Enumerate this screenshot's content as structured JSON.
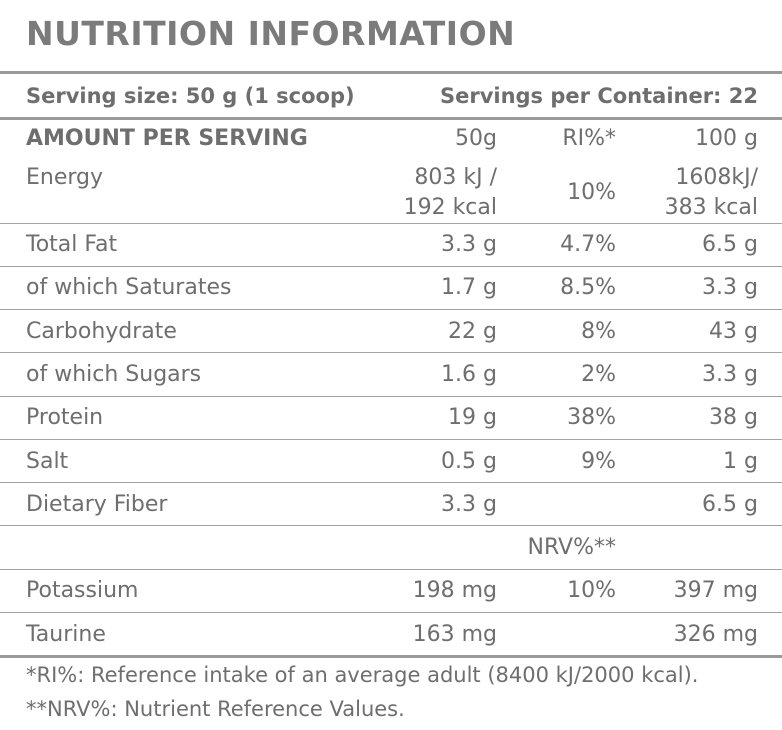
{
  "title": "NUTRITION INFORMATION",
  "serving_size": "Serving size: 50 g (1 scoop)",
  "servings_per_container": "Servings per Container: 22",
  "header": {
    "label": "AMOUNT PER SERVING",
    "col_50": "50g",
    "col_ri": "RI%*",
    "col_100": "100 g"
  },
  "energy": {
    "name": "Energy",
    "v50_line1": "803 kJ /",
    "v50_line2": "192 kcal",
    "ri": "10%",
    "v100_line1": "1608kJ/",
    "v100_line2": "383 kcal"
  },
  "rows": [
    {
      "name": "Total Fat",
      "v50": "3.3 g",
      "ri": "4.7%",
      "v100": "6.5 g"
    },
    {
      "name": "of which Saturates",
      "v50": "1.7 g",
      "ri": "8.5%",
      "v100": "3.3 g"
    },
    {
      "name": "Carbohydrate",
      "v50": "22 g",
      "ri": "8%",
      "v100": "43 g"
    },
    {
      "name": "of which Sugars",
      "v50": "1.6 g",
      "ri": "2%",
      "v100": "3.3 g"
    },
    {
      "name": "Protein",
      "v50": "19 g",
      "ri": "38%",
      "v100": "38 g"
    },
    {
      "name": "Salt",
      "v50": "0.5 g",
      "ri": "9%",
      "v100": "1 g"
    },
    {
      "name": "Dietary Fiber",
      "v50": "3.3 g",
      "ri": "",
      "v100": "6.5 g"
    }
  ],
  "nrv_header": "NRV%**",
  "rows2": [
    {
      "name": "Potassium",
      "v50": "198 mg",
      "ri": "10%",
      "v100": "397 mg"
    },
    {
      "name": "Taurine",
      "v50": "163 mg",
      "ri": "",
      "v100": "326 mg"
    }
  ],
  "footnotes": [
    "*RI%: Reference intake of an average adult (8400 kJ/2000 kcal).",
    "**NRV%: Nutrient Reference Values."
  ]
}
